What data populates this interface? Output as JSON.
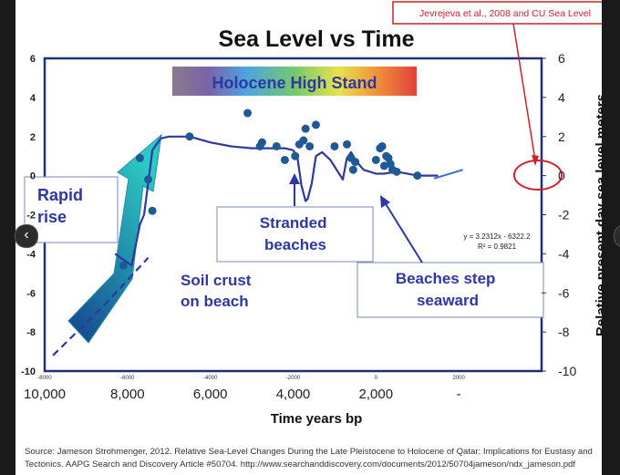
{
  "chart_data": {
    "type": "scatter",
    "title": "Sea Level vs Time",
    "xlabel": "Time years bp",
    "ylabel": "Relative present day sea level meters",
    "xlim": [
      10000,
      -2000
    ],
    "ylim": [
      -10,
      6
    ],
    "x_top_ticks": [
      "-8000",
      "-6000",
      "-4000",
      "-2000",
      "0",
      "2000"
    ],
    "x_top_tick_values": [
      10000,
      8000,
      6000,
      4000,
      2000,
      0
    ],
    "x_ticks": [
      "10,000",
      "8,000",
      "6,000",
      "4,000",
      "2,000",
      "-"
    ],
    "x_tick_values": [
      10000,
      8000,
      6000,
      4000,
      2000,
      0
    ],
    "y_ticks_left": [
      "6",
      "4",
      "2",
      "0",
      "-2",
      "-4",
      "-6",
      "-8",
      "-10"
    ],
    "y_ticks_right": [
      "6",
      "4",
      "2",
      "0",
      "-2",
      "-4",
      "-6",
      "-8",
      "-10"
    ],
    "y_tick_values": [
      6,
      4,
      2,
      0,
      -2,
      -4,
      -6,
      -8,
      -10
    ],
    "series": [
      {
        "type": "scatter",
        "x": [
          8100,
          7700,
          7500,
          7400,
          6500,
          5100,
          4800,
          4750,
          4400,
          4200,
          3950,
          3850,
          3750,
          3700,
          3600,
          3450,
          3000,
          2700,
          2600,
          2550,
          2500,
          2000,
          1900,
          1850,
          1800,
          1750,
          1700,
          1650,
          1600,
          1500,
          1000
        ],
        "y": [
          -4.6,
          0.9,
          -0.2,
          -1.8,
          2.0,
          3.2,
          1.5,
          1.7,
          1.5,
          0.8,
          1.0,
          1.6,
          1.8,
          2.4,
          1.5,
          2.6,
          1.5,
          1.6,
          0.9,
          0.3,
          0.7,
          0.8,
          1.4,
          1.5,
          0.5,
          1.0,
          0.9,
          0.6,
          0.3,
          0.2,
          0.0
        ]
      },
      {
        "type": "line",
        "x": [
          8300,
          8100,
          7900,
          7700,
          7600,
          7500,
          7400,
          7200,
          7000,
          6500,
          6000,
          5500,
          5000,
          4500,
          4200,
          4000,
          3900,
          3800,
          3700,
          3650,
          3550,
          3450,
          3300,
          3100,
          2950,
          2800,
          2700,
          2600,
          2500,
          2300,
          2000,
          1800,
          1500,
          1000,
          500
        ],
        "y": [
          -4.0,
          -4.3,
          -4.6,
          -2.5,
          -2.0,
          -0.4,
          1.3,
          1.9,
          2.0,
          2.0,
          1.7,
          1.5,
          1.4,
          1.4,
          1.4,
          1.3,
          1.0,
          -0.5,
          -1.3,
          -1.2,
          -0.4,
          1.0,
          1.2,
          0.8,
          0.3,
          -0.2,
          0.9,
          1.2,
          0.8,
          0.3,
          0.1,
          0.1,
          0.2,
          0.0,
          0.0
        ]
      },
      {
        "type": "line",
        "x": [
          9800,
          8500,
          7500
        ],
        "y": [
          -9.2,
          -6.5,
          -4.2
        ]
      }
    ],
    "annotations": {
      "title": "Sea Level vs Time",
      "reference": "Jevrejeva et al., 2008 and CU Sea Level",
      "holocene": "Holocene High Stand",
      "rapid_rise": "Rapid rise",
      "stranded": "Stranded beaches",
      "soil_crust": "Soil crust on beach",
      "beaches_step": "Beaches step seaward",
      "equation_line1": "y = 3.2312x - 6322.2",
      "equation_line2": "R² = 0.9821"
    },
    "source_line1": "Source: Jameson Strohmenger, 2012. Relative Sea-Level Changes During the Late Pleistocene to Holocene of Qatar: Implications for Eustasy and",
    "source_line2": "Tectonics.  AAPG Search and Discovery Article #50704. http://www.searchanddiscovery.com/documents/2012/50704jameson/ndx_jameson.pdf",
    "colors": {
      "plot_border": "#1f2f7a",
      "curve": "#2e37a3",
      "points": "#1f5a97",
      "annotation_text": "#2e37a3",
      "red": "#d0202a",
      "rapid_arrow_top": "#2cc9c3",
      "rapid_arrow_bottom": "#14428c"
    },
    "nav": {
      "left": "‹",
      "right": "›"
    }
  }
}
